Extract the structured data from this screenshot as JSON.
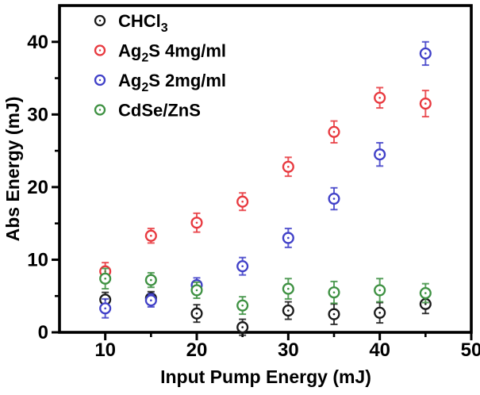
{
  "chart_data": {
    "type": "scatter",
    "title": "",
    "xlabel": "Input Pump Energy (mJ)",
    "ylabel": "Abs Energy (mJ)",
    "xlim": [
      5,
      50
    ],
    "ylim": [
      0,
      45
    ],
    "x_major_ticks": [
      10,
      20,
      30,
      40,
      50
    ],
    "x_minor_ticks": [
      15,
      25,
      35,
      45
    ],
    "y_major_ticks": [
      0,
      10,
      20,
      30,
      40
    ],
    "y_minor_ticks": [
      5,
      15,
      25,
      35
    ],
    "grid": false,
    "legend_position": "top-left-inside",
    "marker_style": "open-circle-with-center-dot",
    "error_bars": "vertical-with-caps",
    "x": [
      10,
      15,
      20,
      25,
      30,
      35,
      40,
      45
    ],
    "series": [
      {
        "name": "CHCl3",
        "label_parts": [
          [
            "CHCl",
            false
          ],
          [
            "3",
            true
          ]
        ],
        "color": "#1a1a1a",
        "values": [
          4.5,
          4.7,
          2.6,
          0.7,
          3.0,
          2.5,
          2.7,
          3.9
        ],
        "errors": [
          1.0,
          0.9,
          1.2,
          1.1,
          1.2,
          1.4,
          1.4,
          1.3
        ]
      },
      {
        "name": "Ag2S 4mg/ml",
        "label_parts": [
          [
            "Ag",
            false
          ],
          [
            "2",
            true
          ],
          [
            "S 4mg/ml",
            false
          ]
        ],
        "color": "#e8393f",
        "values": [
          8.4,
          13.3,
          15.1,
          18.0,
          22.8,
          27.6,
          32.3,
          31.5
        ],
        "errors": [
          1.2,
          1.0,
          1.3,
          1.2,
          1.3,
          1.5,
          1.4,
          1.8
        ]
      },
      {
        "name": "Ag2S 2mg/ml",
        "label_parts": [
          [
            "Ag",
            false
          ],
          [
            "2",
            true
          ],
          [
            "S 2mg/ml",
            false
          ]
        ],
        "color": "#4040c8",
        "values": [
          3.3,
          4.4,
          6.5,
          9.1,
          13.0,
          18.4,
          24.5,
          38.4
        ],
        "errors": [
          1.3,
          0.9,
          1.0,
          1.2,
          1.3,
          1.5,
          1.6,
          1.6
        ]
      },
      {
        "name": "CdSe/ZnS",
        "label_parts": [
          [
            "CdSe/ZnS",
            false
          ]
        ],
        "color": "#3e9142",
        "values": [
          7.4,
          7.2,
          5.8,
          3.7,
          6.0,
          5.5,
          5.8,
          5.4
        ],
        "errors": [
          1.4,
          1.0,
          1.1,
          1.2,
          1.4,
          1.5,
          1.6,
          1.3
        ]
      }
    ]
  }
}
